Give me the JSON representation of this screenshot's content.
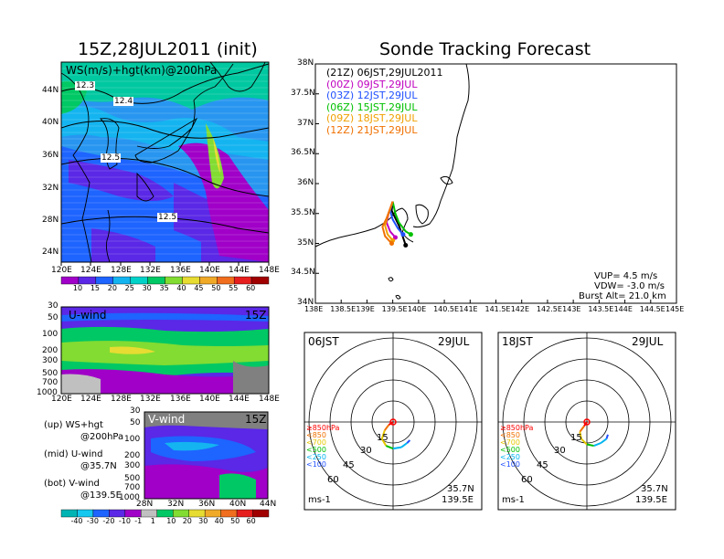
{
  "left_title": "15Z,28JUL2011 (init)",
  "right_title": "Sonde Tracking Forecast",
  "top_map": {
    "label": "WS(m/s)+hgt(km)@200hPa",
    "lat_ticks": [
      "44N",
      "40N",
      "36N",
      "32N",
      "28N",
      "24N"
    ],
    "lon_ticks": [
      "120E",
      "124E",
      "128E",
      "132E",
      "136E",
      "140E",
      "144E",
      "148E"
    ],
    "contour_labels": [
      "12.3",
      "12.4",
      "12.5",
      "12.5"
    ],
    "colorbar_values": [
      "10",
      "15",
      "20",
      "25",
      "30",
      "35",
      "40",
      "45",
      "50",
      "55",
      "60"
    ],
    "colorbar_colors": [
      "#a000c8",
      "#5a28e6",
      "#1e64ff",
      "#14b4f0",
      "#00d2c8",
      "#00c864",
      "#82dc32",
      "#e6dc32",
      "#f0aa28",
      "#f06e1e",
      "#e61e1e",
      "#a00000"
    ]
  },
  "u_panel": {
    "label": "U-wind",
    "time": "15Z",
    "pressure_ticks": [
      "30",
      "50",
      "100",
      "200",
      "300",
      "500",
      "700",
      "1000"
    ],
    "lon_ticks": [
      "120E",
      "124E",
      "128E",
      "132E",
      "136E",
      "140E",
      "144E",
      "148E"
    ]
  },
  "v_panel": {
    "label": "V-wind",
    "time": "15Z",
    "pressure_ticks": [
      "30",
      "50",
      "100",
      "200",
      "300",
      "500",
      "700",
      "1000"
    ],
    "lat_ticks": [
      "28N",
      "32N",
      "36N",
      "40N",
      "44N"
    ],
    "colorbar_values": [
      "-40",
      "-30",
      "-20",
      "-10",
      "-1",
      "1",
      "10",
      "20",
      "30",
      "40",
      "50",
      "60"
    ],
    "colorbar_colors": [
      "#00b4b4",
      "#14c8f0",
      "#1e64ff",
      "#5a28e6",
      "#a000c8",
      "#c0c0c0",
      "#00c864",
      "#82dc32",
      "#e6dc32",
      "#f0aa28",
      "#f06e1e",
      "#e61e1e",
      "#a00000"
    ]
  },
  "legend_notes": [
    {
      "key": "(up)",
      "text": "WS+hgt",
      "sub": "@200hPa"
    },
    {
      "key": "(mid)",
      "text": "U-wind",
      "sub": "@35.7N"
    },
    {
      "key": "(bot)",
      "text": "V-wind",
      "sub": "@139.5E"
    }
  ],
  "track_map": {
    "lat_ticks": [
      "38N",
      "37.5N",
      "37N",
      "36.5N",
      "36N",
      "35.5N",
      "35N",
      "34.5N",
      "34N"
    ],
    "lon_ticks": [
      "138E",
      "138.5E",
      "139E",
      "139.5E",
      "140E",
      "140.5E",
      "141E",
      "141.5E",
      "142E",
      "142.5E",
      "143E",
      "143.5E",
      "144E",
      "144.5E",
      "145E"
    ],
    "launches": [
      {
        "utc": "(21Z)",
        "jst": "06JST,29JUL2011",
        "color": "#000000"
      },
      {
        "utc": "(00Z)",
        "jst": "09JST,29JUL",
        "color": "#c000c0"
      },
      {
        "utc": "(03Z)",
        "jst": "12JST,29JUL",
        "color": "#2050ff"
      },
      {
        "utc": "(06Z)",
        "jst": "15JST,29JUL",
        "color": "#00c000"
      },
      {
        "utc": "(09Z)",
        "jst": "18JST,29JUL",
        "color": "#f0a000"
      },
      {
        "utc": "(12Z)",
        "jst": "21JST,29JUL",
        "color": "#f07000"
      }
    ],
    "params": [
      "VUP= 4.5 m/s",
      "VDW= -3.0 m/s",
      "Burst Alt= 21.0 km"
    ]
  },
  "hodographs": [
    {
      "time": "06JST",
      "date": "29JUL"
    },
    {
      "time": "18JST",
      "date": "29JUL"
    }
  ],
  "hodo_common": {
    "ring_labels": [
      "15",
      "30",
      "45",
      "60"
    ],
    "levels": [
      "≥850hPa",
      "<850",
      "<700",
      "<500",
      "<250",
      "<100"
    ],
    "level_colors": [
      "#ff0000",
      "#f07000",
      "#e6c800",
      "#00c000",
      "#00b4f0",
      "#2050ff"
    ],
    "unit": "ms-1",
    "loc_lat": "35.7N",
    "loc_lon": "139.5E"
  }
}
